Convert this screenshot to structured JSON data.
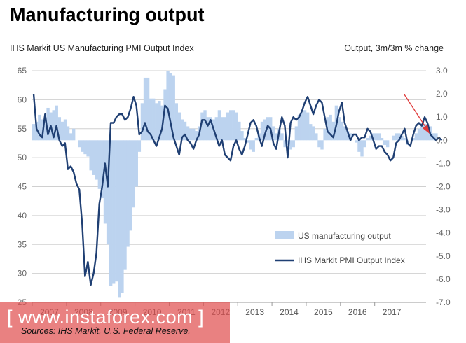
{
  "title": "Manufacturing output",
  "subtitle_left": "IHS Markit  US Manufacturing PMI Output Index",
  "subtitle_right": "Output, 3m/3m % change",
  "sources": "Sources: IHS Markit, U.S. Federal Reserve.",
  "watermark": "[ www.instaforex.com ]",
  "colors": {
    "bars": "#bcd3ef",
    "line": "#1f3f73",
    "arrow": "#e03a3a",
    "grid": "#d0d0d0"
  },
  "chart_data": {
    "type": "bar+line",
    "title": "Manufacturing output",
    "left_axis": {
      "label": "IHS Markit  US Manufacturing PMI Output Index",
      "ylim": [
        25,
        65
      ],
      "ticks": [
        "25",
        "30",
        "35",
        "40",
        "45",
        "50",
        "55",
        "60",
        "65"
      ]
    },
    "right_axis": {
      "label": "Output, 3m/3m % change",
      "ylim": [
        -7,
        3
      ],
      "ticks": [
        "-7.0",
        "-6.0",
        "-5.0",
        "-4.0",
        "-3.0",
        "-2.0",
        "-1.0",
        "0.0",
        "1.0",
        "2.0",
        "3.0"
      ]
    },
    "x_ticks": [
      "2007",
      "2008",
      "2009",
      "2010",
      "2011",
      "2012",
      "2013",
      "2014",
      "2015",
      "2016",
      "2017"
    ],
    "x_start": "2007-01",
    "legend": [
      "US manufacturing output",
      "IHS Markit PMI Output Index"
    ],
    "series": [
      {
        "name": "US manufacturing output",
        "type": "bar",
        "axis": "right",
        "values": [
          0.7,
          0.8,
          1.1,
          0.9,
          1.0,
          1.4,
          1.2,
          1.3,
          1.5,
          1.0,
          0.8,
          0.9,
          0.6,
          0.3,
          0.5,
          0.0,
          -0.3,
          -0.5,
          -0.6,
          -0.7,
          -1.3,
          -1.5,
          -1.7,
          -2.1,
          -2.5,
          -3.6,
          -4.5,
          -6.3,
          -6.2,
          -6.1,
          -6.8,
          -6.6,
          -5.6,
          -4.6,
          -3.9,
          -2.9,
          -2.0,
          -0.5,
          1.6,
          2.7,
          2.7,
          1.8,
          1.8,
          1.6,
          1.7,
          1.5,
          2.2,
          3.0,
          2.9,
          2.8,
          1.6,
          1.2,
          0.9,
          0.8,
          0.6,
          0.5,
          0.5,
          0.4,
          0.6,
          1.2,
          1.3,
          1.0,
          1.0,
          0.9,
          1.0,
          1.3,
          1.0,
          1.0,
          1.2,
          1.3,
          1.3,
          1.2,
          0.8,
          0.4,
          0.1,
          -0.1,
          -0.4,
          -0.5,
          0.1,
          0.3,
          0.8,
          0.9,
          1.0,
          1.0,
          0.6,
          0.3,
          0.5,
          0.3,
          -0.3,
          -0.2,
          -0.4,
          -0.3,
          0.6,
          1.1,
          1.2,
          1.3,
          1.2,
          0.7,
          0.6,
          0.3,
          -0.3,
          -0.4,
          0.5,
          1.0,
          1.1,
          0.8,
          1.5,
          1.0,
          0.8,
          0.6,
          0.4,
          0.3,
          0.0,
          -0.1,
          -0.5,
          -0.7,
          -0.3,
          0.1,
          0.2,
          0.3,
          0.3,
          0.3,
          0.1,
          -0.2,
          -0.3,
          0.0,
          0.2,
          0.3,
          0.3,
          0.2,
          0.1,
          -0.2,
          0.0,
          0.1,
          0.3,
          0.5,
          0.6,
          0.7,
          0.7,
          0.6,
          0.3,
          0.3
        ]
      },
      {
        "name": "IHS Markit PMI Output Index",
        "type": "line",
        "axis": "left",
        "values": [
          61.0,
          55.0,
          54.0,
          53.5,
          57.5,
          54.0,
          55.5,
          53.5,
          55.5,
          53.0,
          52.0,
          52.5,
          48.0,
          48.5,
          47.5,
          45.5,
          44.5,
          38.5,
          29.5,
          32.0,
          28.0,
          30.0,
          33.5,
          42.0,
          45.0,
          49.0,
          45.0,
          56.0,
          56.0,
          57.0,
          57.5,
          57.5,
          56.5,
          57.0,
          58.5,
          60.5,
          59.0,
          54.0,
          54.5,
          56.0,
          54.5,
          54.0,
          53.0,
          52.0,
          53.5,
          55.0,
          59.0,
          58.5,
          56.0,
          53.5,
          52.0,
          50.5,
          53.5,
          54.0,
          53.0,
          52.5,
          51.5,
          53.0,
          54.0,
          56.5,
          56.5,
          55.5,
          56.5,
          55.0,
          53.5,
          52.0,
          53.0,
          50.5,
          50.0,
          49.5,
          52.0,
          53.0,
          51.5,
          50.5,
          52.0,
          54.0,
          56.0,
          56.5,
          55.5,
          53.5,
          52.0,
          54.0,
          55.5,
          55.0,
          52.5,
          51.5,
          54.5,
          57.0,
          55.5,
          50.0,
          56.0,
          57.0,
          56.5,
          57.0,
          58.0,
          59.5,
          60.5,
          59.0,
          57.5,
          59.0,
          60.0,
          59.5,
          57.0,
          54.5,
          54.0,
          53.5,
          55.5,
          58.0,
          59.5,
          56.0,
          54.5,
          53.0,
          54.0,
          54.0,
          53.0,
          53.5,
          53.5,
          55.0,
          54.5,
          53.0,
          51.5,
          52.0,
          52.0,
          51.0,
          50.5,
          49.5,
          50.0,
          52.5,
          53.0,
          54.0,
          55.0,
          52.5,
          52.0,
          54.0,
          55.5,
          56.0,
          55.5,
          57.0,
          56.0,
          54.0,
          53.5,
          53.0,
          53.5,
          53.0
        ]
      }
    ]
  }
}
